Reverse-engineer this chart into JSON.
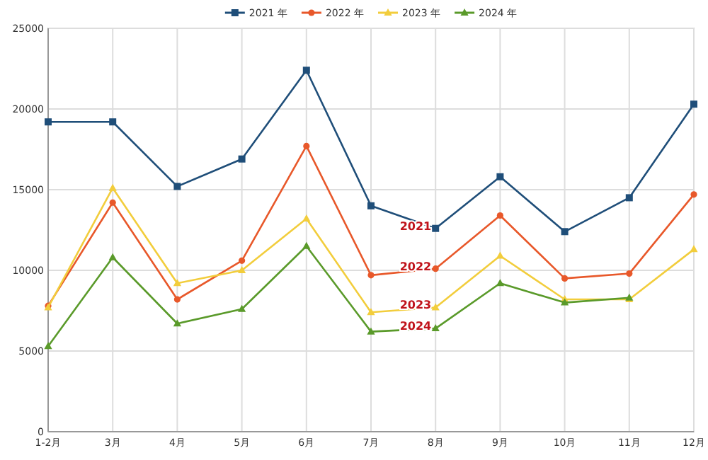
{
  "chart_data": {
    "type": "line",
    "categories": [
      "1-2月",
      "3月",
      "4月",
      "5月",
      "6月",
      "7月",
      "8月",
      "9月",
      "10月",
      "11月",
      "12月"
    ],
    "series": [
      {
        "name": "2021 年",
        "color": "#1f4e79",
        "marker": "square",
        "values": [
          19200,
          19200,
          15200,
          16900,
          22400,
          14000,
          12600,
          15800,
          12400,
          14500,
          20300
        ]
      },
      {
        "name": "2022 年",
        "color": "#e8582a",
        "marker": "circle",
        "values": [
          7800,
          14200,
          8200,
          10600,
          17700,
          9700,
          10100,
          13400,
          9500,
          9800,
          14700
        ]
      },
      {
        "name": "2023 年",
        "color": "#f2cd3c",
        "marker": "triangle",
        "values": [
          7700,
          15100,
          9200,
          10000,
          13200,
          7400,
          7700,
          10900,
          8200,
          8200,
          11300
        ]
      },
      {
        "name": "2024 年",
        "color": "#5a9a2a",
        "marker": "triangle",
        "values": [
          5300,
          10800,
          6700,
          7600,
          11500,
          6200,
          6400,
          9200,
          8000,
          8300,
          null
        ]
      }
    ],
    "ylim": [
      0,
      25000
    ],
    "yticks": [
      0,
      5000,
      10000,
      15000,
      20000,
      25000
    ],
    "grid": true,
    "legend": "top",
    "line_style": "solid",
    "annotations": [
      {
        "text": "2021",
        "x": "8月",
        "y": 12600
      },
      {
        "text": "2022",
        "x": "8月",
        "y": 10100
      },
      {
        "text": "2023",
        "x": "8月",
        "y": 7700
      },
      {
        "text": "2024",
        "x": "8月",
        "y": 6400
      }
    ]
  }
}
